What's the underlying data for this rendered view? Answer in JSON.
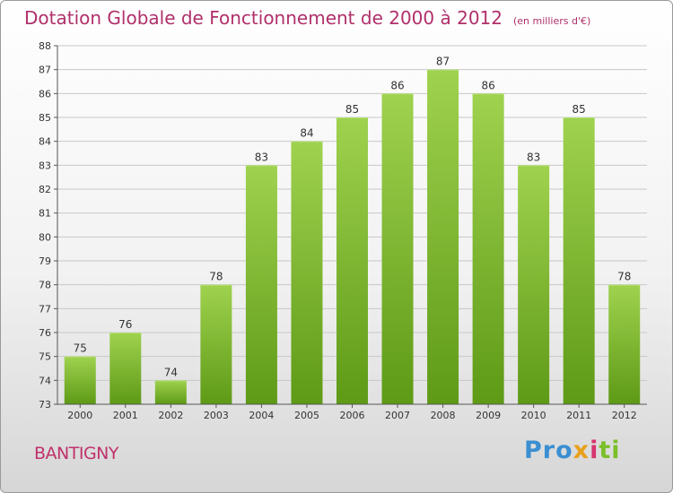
{
  "chart_data": {
    "type": "bar",
    "title": "Dotation Globale de Fonctionnement de 2000 à 2012",
    "subtitle": "(en milliers d'€)",
    "categories": [
      "2000",
      "2001",
      "2002",
      "2003",
      "2004",
      "2005",
      "2006",
      "2007",
      "2008",
      "2009",
      "2010",
      "2011",
      "2012"
    ],
    "values": [
      75,
      76,
      74,
      78,
      83,
      84,
      85,
      86,
      87,
      86,
      83,
      85,
      78
    ],
    "ylim": [
      73,
      88
    ],
    "yticks": [
      73,
      74,
      75,
      76,
      77,
      78,
      79,
      80,
      81,
      82,
      83,
      84,
      85,
      86,
      87,
      88
    ],
    "xlabel": "",
    "ylabel": "",
    "grid": true
  },
  "footer": {
    "commune": "BANTIGNY",
    "logo": {
      "p1": "Pro",
      "p2": "x",
      "p3": "i",
      "p4": "ti"
    }
  },
  "colors": {
    "title": "#b0306a",
    "bar_top": "#9fd24f",
    "bar_bottom": "#5e9a16",
    "grid": "#c8c8c8",
    "axis": "#555555"
  }
}
